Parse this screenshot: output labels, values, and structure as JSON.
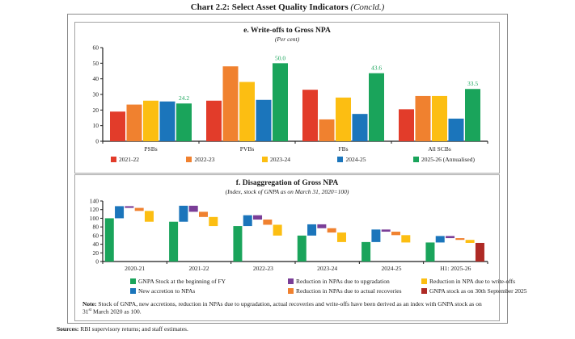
{
  "page": {
    "title": "Chart 2.2: Select Asset Quality Indicators",
    "title_suffix": " (Concld.)",
    "sources_label": "Sources:",
    "sources_text": " RBI supervisory returns; and staff estimates."
  },
  "panel_e": {
    "title": "e. Write-offs to Gross NPA",
    "subtitle": "(Per cent)"
  },
  "panel_f": {
    "title": "f. Disaggregation of Gross NPA",
    "subtitle": "(Index, stock of GNPA as on March 31, 2020=100)",
    "note_label": "Note:",
    "note_text_1": " Stock of GNPA, new accretions, reduction in NPAs due to upgradation, actual recoveries and write-offs have been derived as an index with GNPA stock as on 31",
    "note_sup": "st",
    "note_text_2": " March 2020 as 100."
  },
  "chart_data": [
    {
      "type": "bar",
      "title": "e. Write-offs to Gross NPA",
      "ylabel": "Per cent",
      "ylim": [
        0,
        60
      ],
      "ytick_step": 10,
      "grid": false,
      "legend_position": "bottom",
      "categories": [
        "PSBs",
        "PVBs",
        "FBs",
        "All SCBs"
      ],
      "series": [
        {
          "name": "2021-22",
          "color": "#e23c2a",
          "values": [
            19,
            26,
            33,
            20.5
          ]
        },
        {
          "name": "2022-23",
          "color": "#f0812f",
          "values": [
            23.5,
            48,
            14,
            29
          ]
        },
        {
          "name": "2023-24",
          "color": "#fcbe12",
          "values": [
            26,
            38,
            28,
            29
          ]
        },
        {
          "name": "2024-25",
          "color": "#1b75bb",
          "values": [
            25.5,
            26.5,
            17.5,
            14.5
          ]
        },
        {
          "name": "2025-26 (Annualised)",
          "color": "#1aa45b",
          "values": [
            24.2,
            50.0,
            43.6,
            33.5
          ]
        }
      ],
      "data_labels": {
        "series": "2025-26 (Annualised)",
        "values": [
          "24.2",
          "50.0",
          "43.6",
          "33.5"
        ],
        "color": "#1aa45b"
      }
    },
    {
      "type": "waterfall",
      "title": "f. Disaggregation of Gross NPA",
      "ylabel": "Index, stock of GNPA as on March 31, 2020=100",
      "ylim": [
        0,
        140
      ],
      "ytick_step": 20,
      "grid": false,
      "legend_position": "bottom",
      "categories": [
        "2020-21",
        "2021-22",
        "2022-23",
        "2023-24",
        "2024-25",
        "H1: 2025-26"
      ],
      "palette": {
        "begin": "#1aa45b",
        "accretion": "#1b75bb",
        "upgradation": "#7a3e97",
        "recoveries": "#f0812f",
        "writeoffs": "#fcbe12",
        "stock_sep2025": "#ae2a25"
      },
      "series_labels": {
        "begin": "GNPA Stock at the beginning of FY",
        "accretion": "New accretion to NPAs",
        "upgradation": "Reduction in NPAs due to upgradation",
        "recoveries": "Reduction in NPAs due to actual recoveries",
        "writeoffs": "Reduction in NPA due to write-offs",
        "stock_sep2025": "GNPA stock as on 30th September 2025"
      },
      "legend_order": [
        "begin",
        "upgradation",
        "writeoffs",
        "accretion",
        "recoveries",
        "stock_sep2025"
      ],
      "groups": [
        {
          "label": "2020-21",
          "bars": [
            {
              "key": "begin",
              "lo": 0,
              "hi": 100
            },
            {
              "key": "accretion",
              "lo": 100,
              "hi": 128
            },
            {
              "key": "upgradation",
              "lo": 124,
              "hi": 128
            },
            {
              "key": "recoveries",
              "lo": 117,
              "hi": 124
            },
            {
              "key": "writeoffs",
              "lo": 92,
              "hi": 117
            }
          ]
        },
        {
          "label": "2021-22",
          "bars": [
            {
              "key": "begin",
              "lo": 0,
              "hi": 92
            },
            {
              "key": "accretion",
              "lo": 92,
              "hi": 129
            },
            {
              "key": "upgradation",
              "lo": 115,
              "hi": 129
            },
            {
              "key": "recoveries",
              "lo": 103,
              "hi": 115
            },
            {
              "key": "writeoffs",
              "lo": 82,
              "hi": 103
            }
          ]
        },
        {
          "label": "2022-23",
          "bars": [
            {
              "key": "begin",
              "lo": 0,
              "hi": 82
            },
            {
              "key": "accretion",
              "lo": 82,
              "hi": 107
            },
            {
              "key": "upgradation",
              "lo": 97,
              "hi": 107
            },
            {
              "key": "recoveries",
              "lo": 85,
              "hi": 97
            },
            {
              "key": "writeoffs",
              "lo": 60,
              "hi": 85
            }
          ]
        },
        {
          "label": "2023-24",
          "bars": [
            {
              "key": "begin",
              "lo": 0,
              "hi": 60
            },
            {
              "key": "accretion",
              "lo": 60,
              "hi": 86
            },
            {
              "key": "upgradation",
              "lo": 77,
              "hi": 86
            },
            {
              "key": "recoveries",
              "lo": 67,
              "hi": 77
            },
            {
              "key": "writeoffs",
              "lo": 45,
              "hi": 67
            }
          ]
        },
        {
          "label": "2024-25",
          "bars": [
            {
              "key": "begin",
              "lo": 0,
              "hi": 45
            },
            {
              "key": "accretion",
              "lo": 45,
              "hi": 74
            },
            {
              "key": "upgradation",
              "lo": 69,
              "hi": 74
            },
            {
              "key": "recoveries",
              "lo": 61,
              "hi": 69
            },
            {
              "key": "writeoffs",
              "lo": 44,
              "hi": 61
            }
          ]
        },
        {
          "label": "H1: 2025-26",
          "bars": [
            {
              "key": "begin",
              "lo": 0,
              "hi": 44
            },
            {
              "key": "accretion",
              "lo": 44,
              "hi": 59
            },
            {
              "key": "upgradation",
              "lo": 54,
              "hi": 59
            },
            {
              "key": "recoveries",
              "lo": 50,
              "hi": 54
            },
            {
              "key": "writeoffs",
              "lo": 43,
              "hi": 50
            },
            {
              "key": "stock_sep2025",
              "lo": 0,
              "hi": 43
            }
          ]
        }
      ]
    }
  ]
}
